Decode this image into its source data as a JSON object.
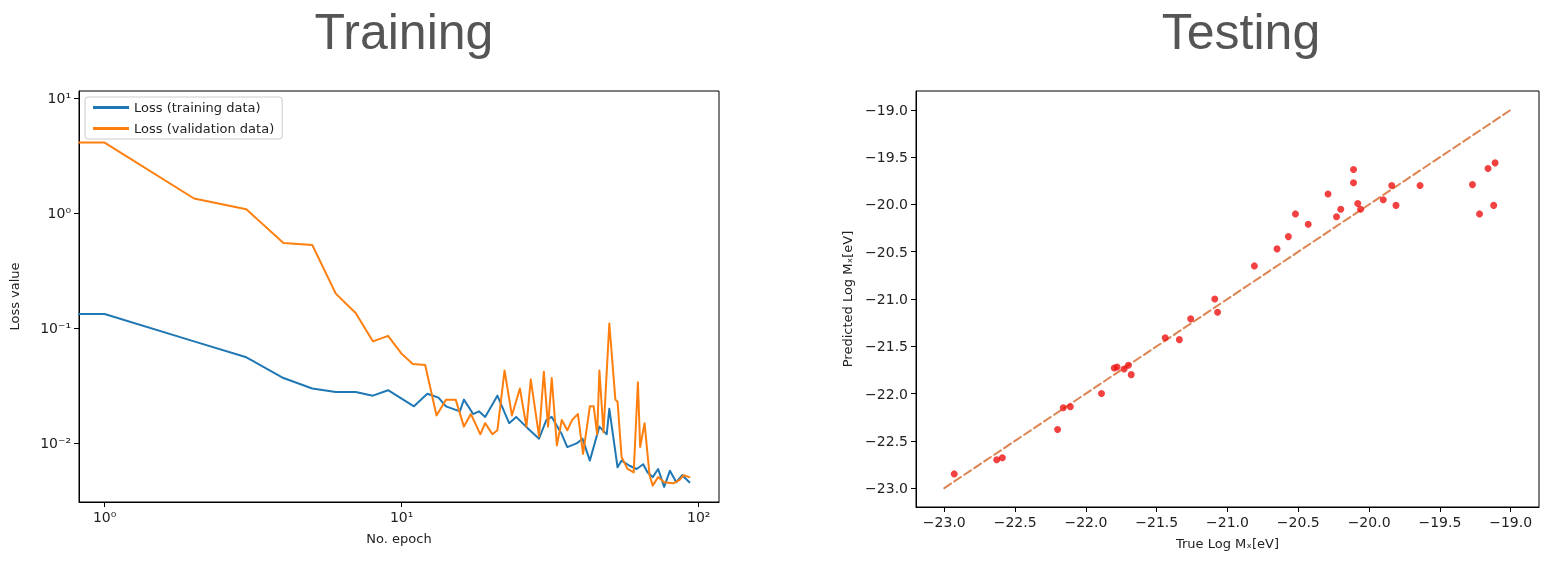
{
  "chart_data": [
    {
      "type": "line",
      "title": "Training",
      "xlabel": "No. epoch",
      "ylabel": "Loss value",
      "log": "xy",
      "legend": "top left",
      "marker": "none",
      "line_style": "solid",
      "grid": false,
      "xlim": [
        0.82,
        117
      ],
      "ylim": [
        0.0031,
        11.5
      ],
      "xticks": [
        {
          "value": 1,
          "label": "10⁰"
        },
        {
          "value": 10,
          "label": "10¹"
        },
        {
          "value": 100,
          "label": "10²"
        }
      ],
      "yticks": [
        {
          "value": 0.01,
          "label": "10⁻²"
        },
        {
          "value": 0.1,
          "label": "10⁻¹"
        },
        {
          "value": 1,
          "label": "10⁰"
        },
        {
          "value": 10,
          "label": "10¹"
        }
      ],
      "series": [
        {
          "name": "Loss (training data)",
          "color": "#1f77b4",
          "x": [
            0.82,
            1,
            2,
            3,
            4,
            5,
            6,
            7,
            8,
            9,
            11,
            12.2,
            13.3,
            14.1,
            15.7,
            16.2,
            17.4,
            18.2,
            19.1,
            21,
            23,
            24.3,
            25.5,
            27,
            29,
            30.7,
            32,
            34.6,
            36.1,
            38.8,
            40.6,
            43,
            46.3,
            49,
            50,
            53.3,
            55,
            58.5,
            61.8,
            65,
            67.3,
            70,
            73,
            76.5,
            80,
            84,
            88,
            93
          ],
          "values": [
            0.133,
            0.133,
            0.077,
            0.056,
            0.037,
            0.03,
            0.028,
            0.028,
            0.026,
            0.029,
            0.021,
            0.027,
            0.025,
            0.021,
            0.019,
            0.024,
            0.018,
            0.019,
            0.017,
            0.026,
            0.015,
            0.017,
            0.015,
            0.013,
            0.011,
            0.016,
            0.017,
            0.012,
            0.0093,
            0.01,
            0.011,
            0.0071,
            0.014,
            0.012,
            0.02,
            0.0062,
            0.0071,
            0.0064,
            0.006,
            0.0066,
            0.0056,
            0.0051,
            0.006,
            0.0042,
            0.0058,
            0.0046,
            0.0053,
            0.0046
          ]
        },
        {
          "name": "Loss (validation data)",
          "color": "#ff7f0e",
          "x": [
            0.82,
            1,
            2,
            3,
            4,
            5,
            6,
            7,
            8,
            9,
            10,
            10.9,
            12,
            13.1,
            14.1,
            15.2,
            16.2,
            17.1,
            18.4,
            19.1,
            20.2,
            21,
            22.2,
            23.5,
            25,
            26.3,
            27.2,
            29,
            30.1,
            31.1,
            32,
            33.3,
            34.6,
            36.1,
            37.5,
            39.2,
            40.8,
            43,
            44.3,
            45.5,
            46.3,
            47.8,
            50,
            52.4,
            53.3,
            55,
            57.6,
            60.4,
            62.4,
            63.5,
            65.7,
            68.3,
            70,
            73,
            76.5,
            82,
            86,
            89,
            93
          ],
          "values": [
            4.1,
            4.1,
            1.34,
            1.08,
            0.55,
            0.53,
            0.2,
            0.136,
            0.077,
            0.086,
            0.06,
            0.049,
            0.048,
            0.0175,
            0.024,
            0.024,
            0.014,
            0.018,
            0.012,
            0.015,
            0.012,
            0.013,
            0.043,
            0.0175,
            0.03,
            0.014,
            0.036,
            0.0115,
            0.042,
            0.014,
            0.037,
            0.0096,
            0.016,
            0.013,
            0.016,
            0.018,
            0.0081,
            0.021,
            0.021,
            0.012,
            0.043,
            0.0125,
            0.11,
            0.024,
            0.023,
            0.0076,
            0.006,
            0.0056,
            0.034,
            0.0093,
            0.015,
            0.0053,
            0.0043,
            0.0051,
            0.0046,
            0.0045,
            0.0048,
            0.0053,
            0.0051
          ]
        }
      ]
    },
    {
      "type": "scatter",
      "title": "Testing",
      "xlabel": "True Log Mₓ[eV]",
      "ylabel": "Predicted Log Mₓ[eV]",
      "grid": false,
      "xlim": [
        -23.2,
        -18.8
      ],
      "ylim": [
        -23.2,
        -18.8
      ],
      "xticks": [
        {
          "value": -23,
          "label": "−23.0"
        },
        {
          "value": -22.5,
          "label": "−22.5"
        },
        {
          "value": -22,
          "label": "−22.0"
        },
        {
          "value": -21.5,
          "label": "−21.5"
        },
        {
          "value": -21,
          "label": "−21.0"
        },
        {
          "value": -20.5,
          "label": "−20.5"
        },
        {
          "value": -20,
          "label": "−20.0"
        },
        {
          "value": -19.5,
          "label": "−19.5"
        },
        {
          "value": -19,
          "label": "−19.0"
        }
      ],
      "yticks": [
        {
          "value": -23,
          "label": "−23.0"
        },
        {
          "value": -22.5,
          "label": "−22.5"
        },
        {
          "value": -22,
          "label": "−22.0"
        },
        {
          "value": -21.5,
          "label": "−21.5"
        },
        {
          "value": -21,
          "label": "−21.0"
        },
        {
          "value": -20.5,
          "label": "−20.5"
        },
        {
          "value": -20,
          "label": "−20.0"
        },
        {
          "value": -19.5,
          "label": "−19.5"
        },
        {
          "value": -19,
          "label": "−19.0"
        }
      ],
      "series": [
        {
          "type": "line",
          "color": "#dd8452",
          "marker": "none",
          "line_style": "dashed",
          "x": [
            -23,
            -19
          ],
          "values": [
            -23,
            -19
          ]
        },
        {
          "type": "scatter",
          "color": "#ee1111",
          "marker": "circle",
          "x": [
            -22.93,
            -22.63,
            -22.59,
            -22.2,
            -22.16,
            -22.11,
            -21.89,
            -21.8,
            -21.78,
            -21.73,
            -21.7,
            -21.68,
            -21.44,
            -21.34,
            -21.26,
            -21.09,
            -21.07,
            -20.81,
            -20.65,
            -20.57,
            -20.52,
            -20.43,
            -20.29,
            -20.23,
            -20.2,
            -20.11,
            -20.11,
            -20.08,
            -20.06,
            -19.9,
            -19.84,
            -19.81,
            -19.64,
            -19.27,
            -19.22,
            -19.16,
            -19.11,
            -19.12
          ],
          "values": [
            -22.85,
            -22.7,
            -22.68,
            -22.38,
            -22.15,
            -22.14,
            -22.0,
            -21.73,
            -21.72,
            -21.74,
            -21.7,
            -21.8,
            -21.41,
            -21.43,
            -21.21,
            -21.0,
            -21.14,
            -20.65,
            -20.47,
            -20.34,
            -20.1,
            -20.21,
            -19.89,
            -20.13,
            -20.05,
            -19.63,
            -19.77,
            -19.99,
            -20.05,
            -19.95,
            -19.8,
            -20.01,
            -19.8,
            -19.79,
            -20.1,
            -19.62,
            -19.56,
            -20.01
          ]
        }
      ]
    }
  ]
}
